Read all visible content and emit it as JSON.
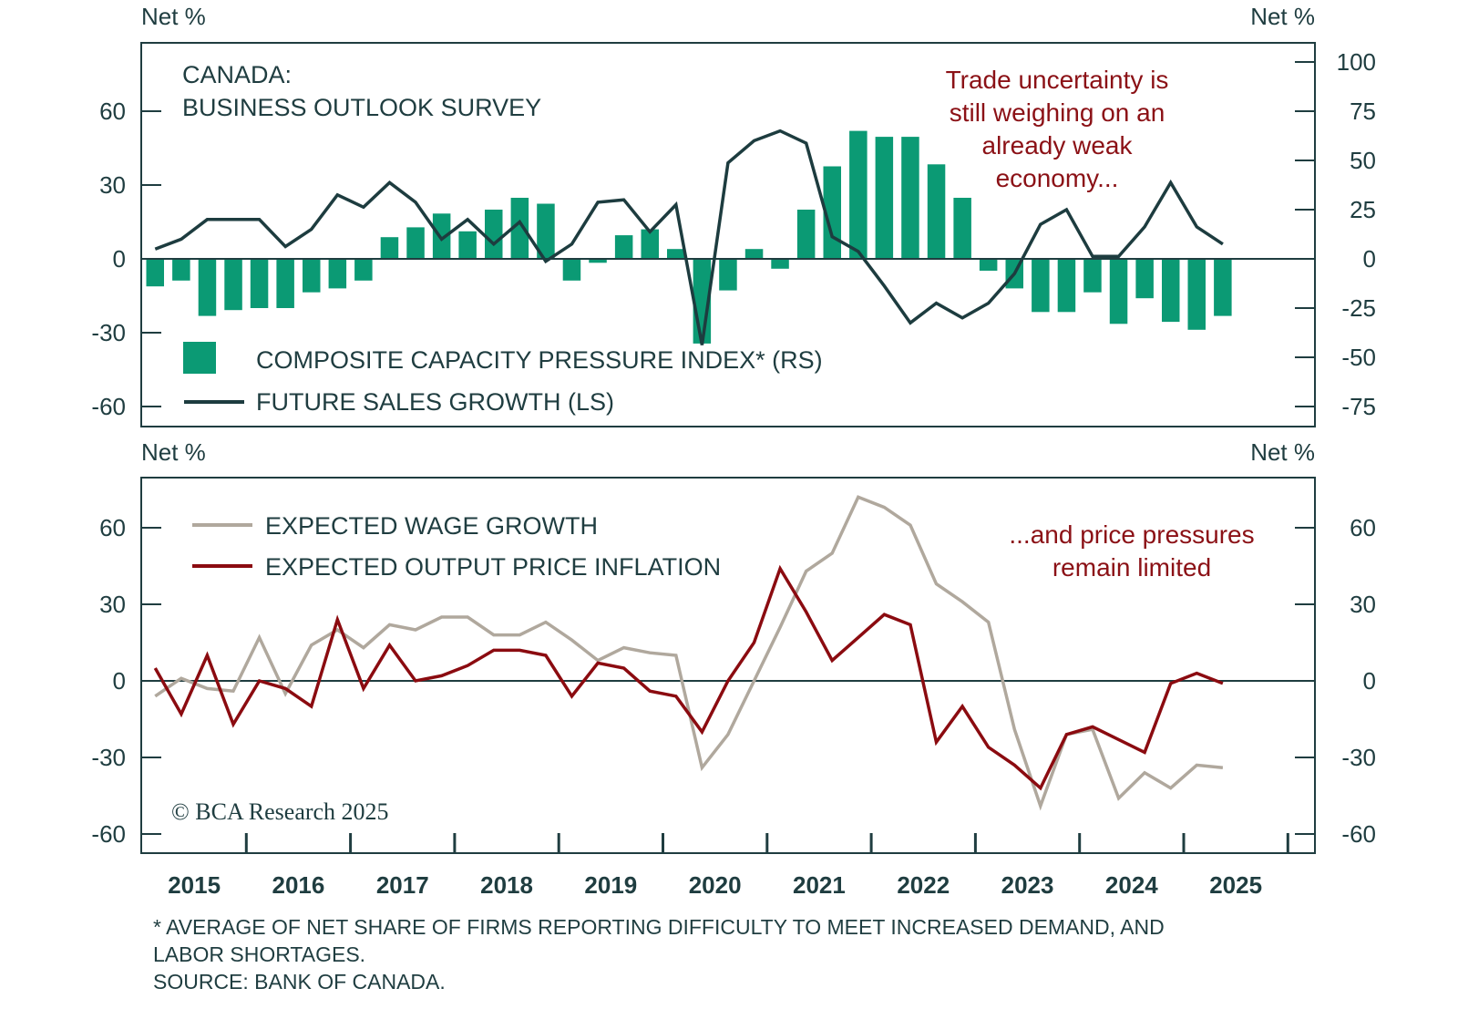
{
  "chart_data": [
    {
      "type": "bar+line",
      "title": "CANADA:",
      "subtitle": "BUSINESS OUTLOOK SURVEY",
      "left_axis_label": "Net %",
      "right_axis_label": "Net %",
      "left_ylim": [
        -70,
        86
      ],
      "left_ticks": [
        60,
        30,
        0,
        -30,
        -60
      ],
      "right_ylim": [
        -85,
        100
      ],
      "right_ticks": [
        100,
        75,
        50,
        25,
        0,
        -25,
        -50,
        -75
      ],
      "x_start": "2015Q1",
      "frequency": "quarterly",
      "annotation": [
        "Trade uncertainty is",
        "still weighing on an",
        "already weak",
        "economy..."
      ],
      "series": [
        {
          "name": "COMPOSITE CAPACITY PRESSURE INDEX* (RS)",
          "kind": "bar",
          "axis": "right",
          "color": "#0b9a74",
          "values": [
            -14,
            -11,
            -29,
            -26,
            -25,
            -25,
            -17,
            -15,
            -11,
            11,
            16,
            23,
            14,
            25,
            31,
            28,
            -11,
            -2,
            12,
            15,
            5,
            -43,
            -16,
            5,
            -5,
            25,
            47,
            65,
            62,
            62,
            48,
            31,
            -6,
            -15,
            -27,
            -27,
            -17,
            -33,
            -20,
            -32,
            -36,
            -29
          ]
        },
        {
          "name": "FUTURE SALES GROWTH (LS)",
          "kind": "line",
          "axis": "left",
          "color": "#1d3c3f",
          "values": [
            4,
            8,
            16,
            16,
            16,
            5,
            12,
            26,
            21,
            31,
            23,
            8,
            16,
            6,
            15,
            -1,
            6,
            23,
            24,
            11,
            22,
            -35,
            39,
            48,
            52,
            47,
            9,
            3,
            -11,
            -26,
            -18,
            -24,
            -18,
            -6,
            14,
            20,
            1,
            1,
            13,
            31,
            13,
            6
          ]
        }
      ]
    },
    {
      "type": "line",
      "left_axis_label": "Net %",
      "right_axis_label": "Net %",
      "ylim": [
        -65,
        82
      ],
      "ticks": [
        60,
        30,
        0,
        -30,
        -60
      ],
      "x_start": "2015Q1",
      "frequency": "quarterly",
      "annotation": [
        "...and price pressures",
        "remain limited"
      ],
      "series": [
        {
          "name": "EXPECTED WAGE GROWTH",
          "color": "#b0a89d",
          "values": [
            -6,
            1,
            -3,
            -4,
            17,
            -5,
            14,
            20,
            13,
            22,
            20,
            25,
            25,
            18,
            18,
            23,
            16,
            8,
            13,
            11,
            10,
            -34,
            -21,
            0,
            21,
            43,
            50,
            72,
            68,
            61,
            38,
            31,
            23,
            -19,
            -49,
            -21,
            -19,
            -46,
            -36,
            -42,
            -33,
            -34
          ]
        },
        {
          "name": "EXPECTED OUTPUT PRICE INFLATION",
          "color": "#8b0b10",
          "values": [
            5,
            -13,
            10,
            -17,
            0,
            -3,
            -10,
            24,
            -3,
            14,
            0,
            2,
            6,
            12,
            12,
            10,
            -6,
            7,
            5,
            -4,
            -6,
            -20,
            0,
            15,
            44,
            27,
            8,
            17,
            26,
            22,
            -24,
            -10,
            -26,
            -33,
            -42,
            -21,
            -18,
            -23,
            -28,
            -1,
            3,
            -1
          ]
        }
      ]
    }
  ],
  "x_axis": {
    "years": [
      "2015",
      "2016",
      "2017",
      "2018",
      "2019",
      "2020",
      "2021",
      "2022",
      "2023",
      "2024",
      "2025"
    ]
  },
  "copyright": "© BCA Research 2025",
  "footnotes": [
    "* AVERAGE OF NET SHARE OF FIRMS REPORTING DIFFICULTY TO MEET INCREASED DEMAND, AND",
    "LABOR SHORTAGES.",
    "SOURCE: BANK OF CANADA."
  ],
  "colors": {
    "frame": "#1f3d40",
    "annotation": "#8b1116"
  }
}
